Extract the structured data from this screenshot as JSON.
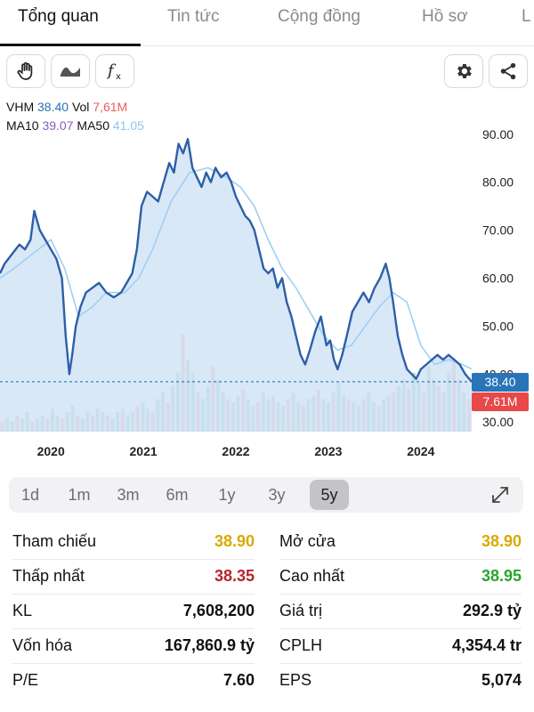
{
  "tabs": [
    {
      "label": "Tổng quan",
      "active": true
    },
    {
      "label": "Tin tức",
      "active": false
    },
    {
      "label": "Cộng đồng",
      "active": false
    },
    {
      "label": "Hồ sơ",
      "active": false
    },
    {
      "label": "L",
      "active": false
    }
  ],
  "toolbar": {
    "left_icons": [
      "hand-icon",
      "wave-icon",
      "function-icon"
    ],
    "right_icons": [
      "gear-icon",
      "share-icon"
    ]
  },
  "legend": {
    "symbol": "VHM",
    "price": "38.40",
    "vol_label": "Vol",
    "vol": "7,61M",
    "ma10_label": "MA10",
    "ma10": "39.07",
    "ma50_label": "MA50",
    "ma50": "41.05"
  },
  "colors": {
    "price_line": "#2d5fa8",
    "area_fill": "#cfe2f5",
    "ma10": "#2d5fa8",
    "ma50": "#9fd0f3",
    "vol_up": "#8fc9b8",
    "vol_down": "#f0a3a3",
    "price_badge": "#2a74b8",
    "vol_badge": "#e84848",
    "yellow": "#d9a900",
    "red": "#b3262a",
    "green": "#2aa52f"
  },
  "chart_data": {
    "type": "line",
    "y_ticks": [
      "90.00",
      "80.00",
      "70.00",
      "60.00",
      "50.00",
      "40.00",
      "30.00"
    ],
    "y_tick_values": [
      90,
      80,
      70,
      60,
      50,
      40,
      30
    ],
    "ylim": [
      28,
      92
    ],
    "x_labels": [
      "2020",
      "2021",
      "2022",
      "2023",
      "2024"
    ],
    "x_label_values": [
      2020.0,
      2021.0,
      2022.0,
      2023.0,
      2024.0
    ],
    "xlim": [
      2019.45,
      2024.55
    ],
    "current_price": 38.4,
    "price_badge": "38.40",
    "vol_badge": "7.61M",
    "series": [
      {
        "name": "VHM",
        "x": [
          2019.45,
          2019.5,
          2019.58,
          2019.66,
          2019.72,
          2019.78,
          2019.82,
          2019.88,
          2019.94,
          2020.0,
          2020.06,
          2020.12,
          2020.16,
          2020.2,
          2020.23,
          2020.27,
          2020.32,
          2020.38,
          2020.45,
          2020.52,
          2020.6,
          2020.68,
          2020.76,
          2020.82,
          2020.88,
          2020.93,
          2020.98,
          2021.04,
          2021.1,
          2021.16,
          2021.22,
          2021.28,
          2021.33,
          2021.38,
          2021.43,
          2021.48,
          2021.53,
          2021.58,
          2021.63,
          2021.68,
          2021.73,
          2021.78,
          2021.84,
          2021.9,
          2021.95,
          2022.0,
          2022.05,
          2022.1,
          2022.15,
          2022.2,
          2022.25,
          2022.3,
          2022.35,
          2022.4,
          2022.45,
          2022.5,
          2022.55,
          2022.6,
          2022.65,
          2022.7,
          2022.75,
          2022.8,
          2022.86,
          2022.92,
          2022.98,
          2023.02,
          2023.06,
          2023.1,
          2023.15,
          2023.2,
          2023.26,
          2023.32,
          2023.38,
          2023.44,
          2023.5,
          2023.56,
          2023.62,
          2023.66,
          2023.7,
          2023.75,
          2023.8,
          2023.85,
          2023.9,
          2023.95,
          2024.0,
          2024.06,
          2024.12,
          2024.18,
          2024.24,
          2024.3,
          2024.36,
          2024.42,
          2024.48,
          2024.55
        ],
        "y": [
          61,
          63,
          65,
          67,
          66,
          68,
          74,
          70,
          68,
          66,
          64,
          60,
          48,
          40,
          44,
          50,
          54,
          57,
          58,
          59,
          57,
          56,
          57,
          59,
          61,
          66,
          75,
          78,
          77,
          76,
          80,
          84,
          82,
          88,
          86,
          89,
          83,
          81,
          79,
          82,
          80,
          83,
          81,
          82,
          80,
          77,
          75,
          73,
          72,
          70,
          66,
          62,
          61,
          62,
          58,
          60,
          55,
          52,
          48,
          44,
          42,
          45,
          49,
          52,
          46,
          47,
          43,
          41,
          44,
          48,
          53,
          55,
          57,
          55,
          58,
          60,
          63,
          60,
          55,
          48,
          44,
          41,
          40,
          39,
          41,
          42,
          43,
          44,
          43,
          44,
          43,
          42,
          40,
          38.4
        ]
      },
      {
        "name": "MA50",
        "x": [
          2019.45,
          2019.6,
          2019.8,
          2020.0,
          2020.15,
          2020.3,
          2020.45,
          2020.6,
          2020.8,
          2020.95,
          2021.1,
          2021.3,
          2021.5,
          2021.7,
          2021.9,
          2022.05,
          2022.2,
          2022.35,
          2022.5,
          2022.65,
          2022.8,
          2022.95,
          2023.1,
          2023.25,
          2023.4,
          2023.55,
          2023.7,
          2023.85,
          2024.0,
          2024.15,
          2024.3,
          2024.45,
          2024.55
        ],
        "y": [
          60,
          62,
          65,
          68,
          62,
          52,
          54,
          57,
          57,
          60,
          66,
          76,
          82,
          83,
          81,
          79,
          75,
          68,
          62,
          58,
          53,
          48,
          45,
          46,
          50,
          54,
          57,
          55,
          46,
          42,
          43,
          42,
          41.05
        ]
      }
    ],
    "volume_note": "volume bars, relative heights",
    "volume": [
      3,
      4,
      3,
      5,
      4,
      6,
      3,
      4,
      5,
      4,
      7,
      5,
      4,
      6,
      8,
      5,
      4,
      6,
      5,
      7,
      6,
      5,
      4,
      6,
      7,
      5,
      6,
      8,
      9,
      7,
      6,
      10,
      12,
      9,
      14,
      18,
      30,
      22,
      18,
      12,
      10,
      14,
      20,
      16,
      12,
      10,
      9,
      11,
      13,
      10,
      8,
      9,
      12,
      10,
      11,
      9,
      8,
      10,
      12,
      9,
      8,
      10,
      11,
      13,
      10,
      9,
      12,
      15,
      11,
      10,
      9,
      8,
      10,
      12,
      9,
      8,
      10,
      11,
      12,
      14,
      16,
      13,
      18,
      15,
      12,
      20,
      16,
      14,
      12,
      18,
      22,
      16,
      12,
      10
    ]
  },
  "periods": [
    {
      "label": "1d",
      "active": false
    },
    {
      "label": "1m",
      "active": false
    },
    {
      "label": "3m",
      "active": false
    },
    {
      "label": "6m",
      "active": false
    },
    {
      "label": "1y",
      "active": false
    },
    {
      "label": "3y",
      "active": false
    },
    {
      "label": "5y",
      "active": true
    }
  ],
  "stats": {
    "left": [
      {
        "label": "Tham chiếu",
        "value": "38.90",
        "color": "yellow"
      },
      {
        "label": "Thấp nhất",
        "value": "38.35",
        "color": "red"
      },
      {
        "label": "KL",
        "value": "7,608,200",
        "color": ""
      },
      {
        "label": "Vốn hóa",
        "value": "167,860.9 tỷ",
        "color": ""
      },
      {
        "label": "P/E",
        "value": "7.60",
        "color": ""
      }
    ],
    "right": [
      {
        "label": "Mở cửa",
        "value": "38.90",
        "color": "yellow"
      },
      {
        "label": "Cao nhất",
        "value": "38.95",
        "color": "green"
      },
      {
        "label": "Giá trị",
        "value": "292.9 tỷ",
        "color": ""
      },
      {
        "label": "CPLH",
        "value": "4,354.4 tr",
        "color": ""
      },
      {
        "label": "EPS",
        "value": "5,074",
        "color": ""
      }
    ]
  }
}
